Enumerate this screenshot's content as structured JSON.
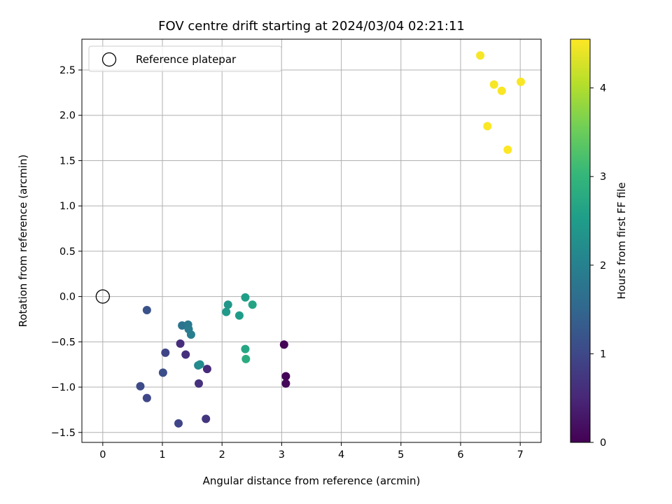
{
  "chart_data": {
    "type": "scatter",
    "title": "FOV centre drift starting at 2024/03/04 02:21:11",
    "xlabel": "Angular distance from reference (arcmin)",
    "ylabel": "Rotation from reference (arcmin)",
    "xlim": [
      -0.35,
      7.35
    ],
    "ylim": [
      -1.61,
      2.84
    ],
    "xticks": [
      0,
      1,
      2,
      3,
      4,
      5,
      6,
      7
    ],
    "yticks": [
      -1.5,
      -1.0,
      -0.5,
      0.0,
      0.5,
      1.0,
      1.5,
      2.0,
      2.5
    ],
    "xtick_labels": [
      "0",
      "1",
      "2",
      "3",
      "4",
      "5",
      "6",
      "7"
    ],
    "ytick_labels": [
      "−1.5",
      "−1.0",
      "−0.5",
      "0.0",
      "0.5",
      "1.0",
      "1.5",
      "2.0",
      "2.5"
    ],
    "grid": true,
    "legend": {
      "placement": "top-left",
      "entries": [
        "Reference platepar"
      ]
    },
    "reference_point": {
      "x": 0,
      "y": 0
    },
    "colorbar": {
      "label": "Hours from first FF file",
      "range": [
        0,
        4.55
      ],
      "ticks": [
        0,
        1,
        2,
        3,
        4
      ],
      "tick_labels": [
        "0",
        "1",
        "2",
        "3",
        "4"
      ],
      "colormap": "viridis"
    },
    "points": [
      {
        "x": 3.04,
        "y": -0.53,
        "hours": 0.02
      },
      {
        "x": 3.07,
        "y": -0.88,
        "hours": 0.05
      },
      {
        "x": 3.07,
        "y": -0.96,
        "hours": 0.08
      },
      {
        "x": 1.75,
        "y": -0.8,
        "hours": 0.55
      },
      {
        "x": 1.3,
        "y": -0.52,
        "hours": 0.6
      },
      {
        "x": 1.39,
        "y": -0.64,
        "hours": 0.62
      },
      {
        "x": 1.61,
        "y": -0.96,
        "hours": 0.65
      },
      {
        "x": 1.73,
        "y": -1.35,
        "hours": 0.7
      },
      {
        "x": 1.27,
        "y": -1.4,
        "hours": 0.95
      },
      {
        "x": 1.05,
        "y": -0.62,
        "hours": 0.95
      },
      {
        "x": 0.74,
        "y": -1.12,
        "hours": 1.0
      },
      {
        "x": 0.63,
        "y": -0.99,
        "hours": 1.05
      },
      {
        "x": 1.01,
        "y": -0.84,
        "hours": 1.1
      },
      {
        "x": 0.74,
        "y": -0.15,
        "hours": 1.15
      },
      {
        "x": 1.33,
        "y": -0.32,
        "hours": 1.75
      },
      {
        "x": 1.43,
        "y": -0.31,
        "hours": 1.85
      },
      {
        "x": 1.44,
        "y": -0.36,
        "hours": 1.9
      },
      {
        "x": 1.48,
        "y": -0.42,
        "hours": 1.95
      },
      {
        "x": 1.6,
        "y": -0.76,
        "hours": 2.1
      },
      {
        "x": 1.63,
        "y": -0.75,
        "hours": 2.2
      },
      {
        "x": 2.1,
        "y": -0.09,
        "hours": 2.4
      },
      {
        "x": 2.07,
        "y": -0.17,
        "hours": 2.45
      },
      {
        "x": 2.29,
        "y": -0.21,
        "hours": 2.5
      },
      {
        "x": 2.39,
        "y": -0.01,
        "hours": 2.55
      },
      {
        "x": 2.51,
        "y": -0.09,
        "hours": 2.65
      },
      {
        "x": 2.39,
        "y": -0.58,
        "hours": 2.7
      },
      {
        "x": 2.4,
        "y": -0.69,
        "hours": 2.8
      },
      {
        "x": 6.33,
        "y": 2.66,
        "hours": 4.5
      },
      {
        "x": 6.56,
        "y": 2.34,
        "hours": 4.5
      },
      {
        "x": 6.69,
        "y": 2.27,
        "hours": 4.52
      },
      {
        "x": 7.01,
        "y": 2.37,
        "hours": 4.52
      },
      {
        "x": 6.45,
        "y": 1.88,
        "hours": 4.53
      },
      {
        "x": 6.79,
        "y": 1.62,
        "hours": 4.55
      }
    ]
  }
}
